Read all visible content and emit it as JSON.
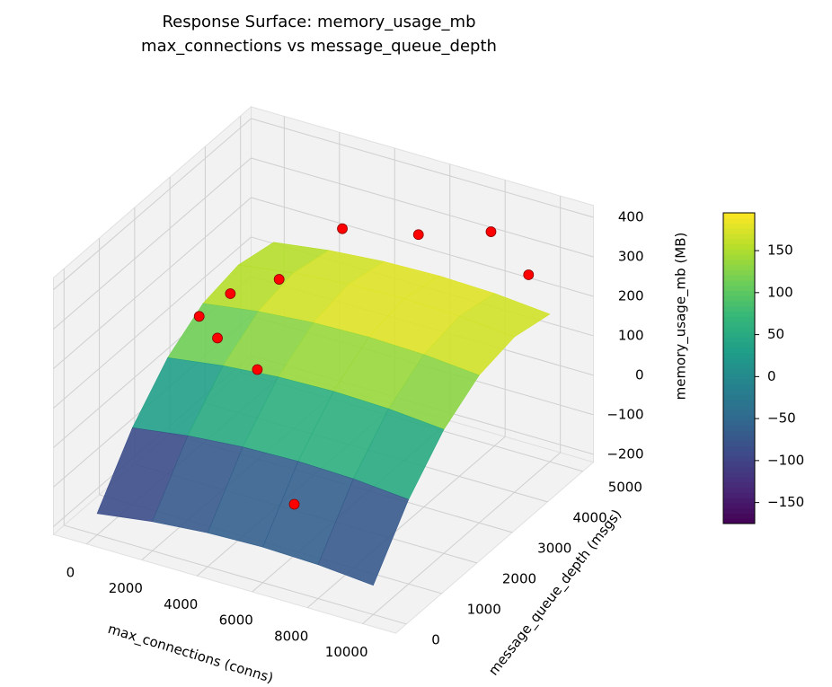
{
  "chart_data": {
    "type": "surface3d",
    "title": "Response Surface: memory_usage_mb",
    "subtitle": "max_connections vs message_queue_depth",
    "xlabel": "max_connections (conns)",
    "ylabel": "message_queue_depth (msgs)",
    "zlabel": "memory_usage_mb (MB)",
    "xlim": [
      -1200,
      11200
    ],
    "ylim": [
      -300,
      5300
    ],
    "zlim": [
      -220,
      430
    ],
    "xticks": [
      0,
      2000,
      4000,
      6000,
      8000,
      10000
    ],
    "yticks": [
      0,
      1000,
      2000,
      3000,
      4000,
      5000
    ],
    "zticks": [
      {
        "value": -200,
        "label": "−200"
      },
      {
        "value": -100,
        "label": "−100"
      },
      0,
      100,
      200,
      300,
      400
    ],
    "colormap": "viridis",
    "surface": {
      "x": [
        0,
        2000,
        4000,
        6000,
        8000,
        10000
      ],
      "y": [
        0,
        1000,
        2000,
        3000,
        4000,
        5000
      ],
      "z": [
        [
          -166,
          -146,
          -134,
          -130,
          -134,
          -146
        ],
        [
          -26,
          -6,
          6,
          10,
          6,
          -6
        ],
        [
          74,
          94,
          106,
          110,
          106,
          94
        ],
        [
          134,
          154,
          166,
          170,
          166,
          154
        ],
        [
          154,
          174,
          186,
          190,
          186,
          174
        ],
        [
          134,
          154,
          166,
          170,
          166,
          154
        ]
      ]
    },
    "points": {
      "color": "#ff0000",
      "x": [
        500,
        1800,
        1500,
        2500,
        3000,
        5500,
        8000,
        10000,
        3500,
        6500
      ],
      "y": [
        2500,
        2000,
        2600,
        3200,
        4600,
        4800,
        4900,
        4400,
        1800,
        500
      ],
      "z": [
        150,
        160,
        220,
        230,
        260,
        280,
        330,
        300,
        130,
        -50
      ]
    },
    "colorbar": {
      "lim": [
        -175,
        195
      ],
      "ticks": [
        {
          "value": -150,
          "label": "−150"
        },
        {
          "value": -100,
          "label": "−100"
        },
        {
          "value": -50,
          "label": "−50"
        },
        0,
        50,
        100,
        150
      ]
    }
  }
}
